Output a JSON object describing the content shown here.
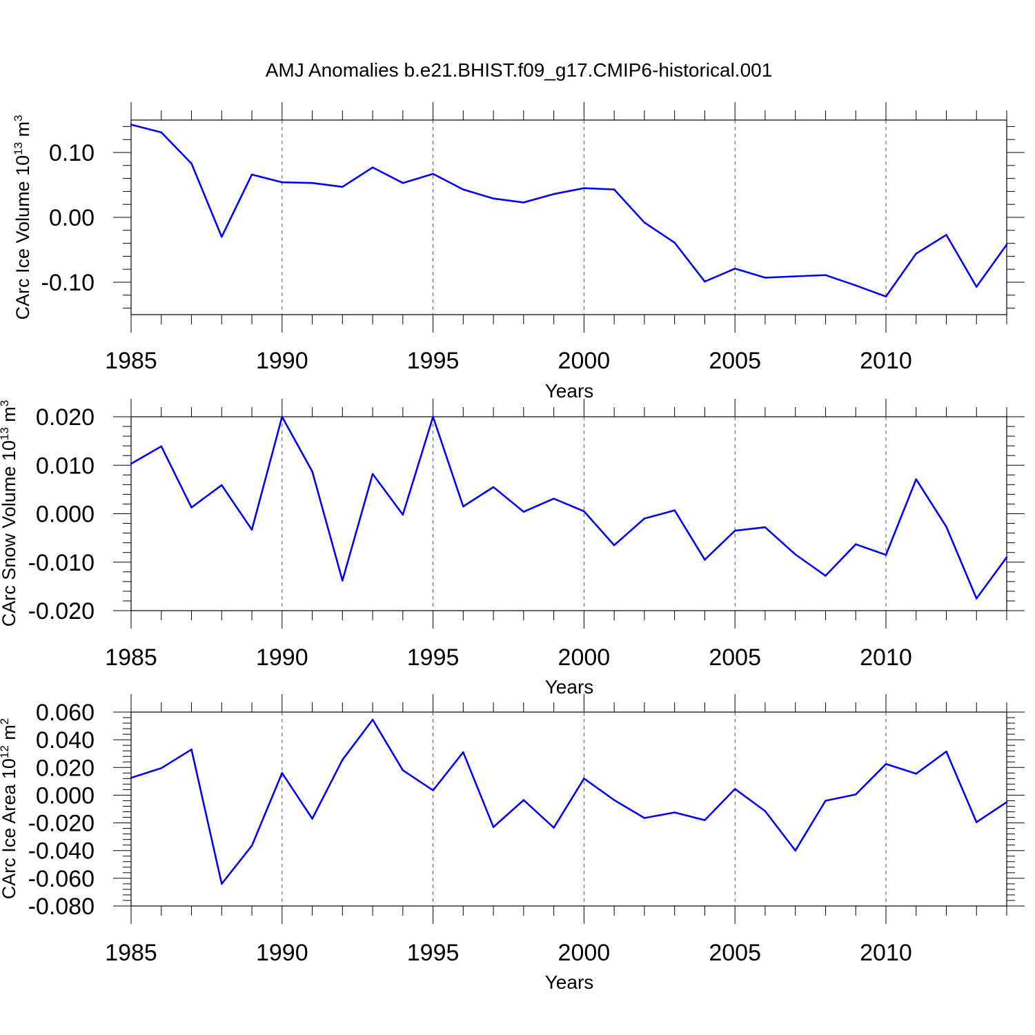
{
  "title": "AMJ Anomalies b.e21.BHIST.f09_g17.CMIP6-historical.001",
  "line_color": "#0000ff",
  "chart_data": [
    {
      "type": "line",
      "title": "AMJ Anomalies b.e21.BHIST.f09_g17.CMIP6-historical.001",
      "xlabel": "Years",
      "ylabel": {
        "base": "CArc Ice Volume 10",
        "exp": "13",
        "unit": " m",
        "unit_exp": "3"
      },
      "xlim": [
        1985,
        2014
      ],
      "ylim": [
        -0.15,
        0.15
      ],
      "x_ticks": [
        1985,
        1990,
        1995,
        2000,
        2005,
        2010
      ],
      "x_tick_labels": [
        "1985",
        "1990",
        "1995",
        "2000",
        "2005",
        "2010"
      ],
      "y_ticks": [
        -0.1,
        0.0,
        0.1
      ],
      "y_tick_labels": [
        "-0.10",
        "0.00",
        "0.10"
      ],
      "y_minor_step": 0.02,
      "grid": "vertical dashed at major x ticks",
      "x": [
        1985,
        1986,
        1987,
        1988,
        1989,
        1990,
        1991,
        1992,
        1993,
        1994,
        1995,
        1996,
        1997,
        1998,
        1999,
        2000,
        2001,
        2002,
        2003,
        2004,
        2005,
        2006,
        2007,
        2008,
        2009,
        2010,
        2011,
        2012,
        2013,
        2014
      ],
      "values": [
        0.143,
        0.131,
        0.083,
        -0.03,
        0.066,
        0.054,
        0.053,
        0.047,
        0.077,
        0.053,
        0.067,
        0.043,
        0.029,
        0.023,
        0.036,
        0.045,
        0.043,
        -0.008,
        -0.039,
        -0.099,
        -0.079,
        -0.093,
        -0.091,
        -0.089,
        -0.105,
        -0.122,
        -0.056,
        -0.027,
        -0.107,
        -0.042
      ]
    },
    {
      "type": "line",
      "xlabel": "Years",
      "ylabel": {
        "base": "CArc Snow Volume 10",
        "exp": "13",
        "unit": " m",
        "unit_exp": "3"
      },
      "xlim": [
        1985,
        2014
      ],
      "ylim": [
        -0.02,
        0.02
      ],
      "x_ticks": [
        1985,
        1990,
        1995,
        2000,
        2005,
        2010
      ],
      "x_tick_labels": [
        "1985",
        "1990",
        "1995",
        "2000",
        "2005",
        "2010"
      ],
      "y_ticks": [
        -0.02,
        -0.01,
        0.0,
        0.01,
        0.02
      ],
      "y_tick_labels": [
        "-0.020",
        "-0.010",
        "0.000",
        "0.010",
        "0.020"
      ],
      "y_minor_step": 0.002,
      "grid": "vertical dashed at major x ticks",
      "x": [
        1985,
        1986,
        1987,
        1988,
        1989,
        1990,
        1991,
        1992,
        1993,
        1994,
        1995,
        1996,
        1997,
        1998,
        1999,
        2000,
        2001,
        2002,
        2003,
        2004,
        2005,
        2006,
        2007,
        2008,
        2009,
        2010,
        2011,
        2012,
        2013,
        2014
      ],
      "values": [
        0.0103,
        0.0139,
        0.0013,
        0.0059,
        -0.0033,
        0.02,
        0.0087,
        -0.0138,
        0.0082,
        -0.0002,
        0.02,
        0.0015,
        0.0055,
        0.0004,
        0.0031,
        0.0005,
        -0.0065,
        -0.001,
        0.0007,
        -0.0095,
        -0.0035,
        -0.0028,
        -0.0084,
        -0.0128,
        -0.0063,
        -0.0085,
        0.0071,
        -0.0027,
        -0.0175,
        -0.009
      ]
    },
    {
      "type": "line",
      "xlabel": "Years",
      "ylabel": {
        "base": "CArc Ice Area 10",
        "exp": "12",
        "unit": " m",
        "unit_exp": "2"
      },
      "xlim": [
        1985,
        2014
      ],
      "ylim": [
        -0.08,
        0.06
      ],
      "x_ticks": [
        1985,
        1990,
        1995,
        2000,
        2005,
        2010
      ],
      "x_tick_labels": [
        "1985",
        "1990",
        "1995",
        "2000",
        "2005",
        "2010"
      ],
      "y_ticks": [
        -0.08,
        -0.06,
        -0.04,
        -0.02,
        0.0,
        0.02,
        0.04,
        0.06
      ],
      "y_tick_labels": [
        "-0.080",
        "-0.060",
        "-0.040",
        "-0.020",
        "0.000",
        "0.020",
        "0.040",
        "0.060"
      ],
      "y_minor_step": 0.004,
      "grid": "vertical dashed at major x ticks",
      "x": [
        1985,
        1986,
        1987,
        1988,
        1989,
        1990,
        1991,
        1992,
        1993,
        1994,
        1995,
        1996,
        1997,
        1998,
        1999,
        2000,
        2001,
        2002,
        2003,
        2004,
        2005,
        2006,
        2007,
        2008,
        2009,
        2010,
        2011,
        2012,
        2013,
        2014
      ],
      "values": [
        0.0125,
        0.0195,
        0.033,
        -0.064,
        -0.0365,
        0.016,
        -0.017,
        0.0255,
        0.0545,
        0.018,
        0.0035,
        0.031,
        -0.023,
        -0.0035,
        -0.0235,
        0.012,
        -0.0035,
        -0.0165,
        -0.0125,
        -0.018,
        0.0045,
        -0.0115,
        -0.04,
        -0.004,
        0.0005,
        0.0225,
        0.0155,
        0.0315,
        -0.0195,
        -0.005
      ]
    }
  ]
}
